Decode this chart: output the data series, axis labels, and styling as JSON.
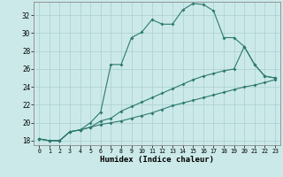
{
  "xlabel": "Humidex (Indice chaleur)",
  "ylabel": "",
  "xlim": [
    -0.5,
    23.5
  ],
  "ylim": [
    17.5,
    33.5
  ],
  "xticks": [
    0,
    1,
    2,
    3,
    4,
    5,
    6,
    7,
    8,
    9,
    10,
    11,
    12,
    13,
    14,
    15,
    16,
    17,
    18,
    19,
    20,
    21,
    22,
    23
  ],
  "yticks": [
    18,
    20,
    22,
    24,
    26,
    28,
    30,
    32
  ],
  "background_color": "#cce9e9",
  "grid_color": "#afd3d3",
  "line_color": "#2d7a6e",
  "curve1_x": [
    0,
    1,
    2,
    3,
    4,
    5,
    6,
    7,
    8,
    9,
    10,
    11,
    12,
    13,
    14,
    15,
    16,
    17,
    18,
    19,
    20,
    21,
    22,
    23
  ],
  "curve1_y": [
    18.2,
    18.0,
    18.0,
    19.0,
    19.2,
    20.0,
    21.2,
    26.5,
    26.5,
    29.5,
    30.1,
    31.5,
    31.0,
    31.0,
    32.6,
    33.3,
    33.2,
    32.5,
    29.5,
    29.5,
    28.5,
    26.5,
    25.2,
    25.0
  ],
  "curve2_x": [
    0,
    1,
    2,
    3,
    4,
    5,
    6,
    7,
    8,
    9,
    10,
    11,
    12,
    13,
    14,
    15,
    16,
    17,
    18,
    19,
    20,
    21,
    22,
    23
  ],
  "curve2_y": [
    18.2,
    18.0,
    18.0,
    19.0,
    19.2,
    19.5,
    20.2,
    20.5,
    21.3,
    21.8,
    22.3,
    22.8,
    23.3,
    23.8,
    24.3,
    24.8,
    25.2,
    25.5,
    25.8,
    26.0,
    28.5,
    26.5,
    25.2,
    25.0
  ],
  "curve3_x": [
    0,
    1,
    2,
    3,
    4,
    5,
    6,
    7,
    8,
    9,
    10,
    11,
    12,
    13,
    14,
    15,
    16,
    17,
    18,
    19,
    20,
    21,
    22,
    23
  ],
  "curve3_y": [
    18.2,
    18.0,
    18.0,
    19.0,
    19.2,
    19.5,
    19.8,
    20.0,
    20.2,
    20.5,
    20.8,
    21.1,
    21.5,
    21.9,
    22.2,
    22.5,
    22.8,
    23.1,
    23.4,
    23.7,
    24.0,
    24.2,
    24.5,
    24.8
  ]
}
